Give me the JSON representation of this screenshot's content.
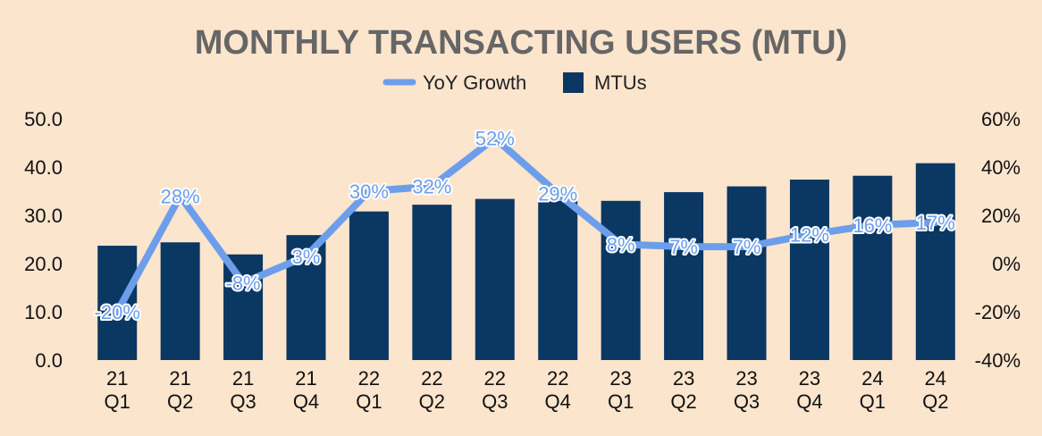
{
  "chart_data": {
    "type": "bar",
    "title": "MONTHLY TRANSACTING USERS (MTU)",
    "categories": [
      [
        "21",
        "Q1"
      ],
      [
        "21",
        "Q2"
      ],
      [
        "21",
        "Q3"
      ],
      [
        "21",
        "Q4"
      ],
      [
        "22",
        "Q1"
      ],
      [
        "22",
        "Q2"
      ],
      [
        "22",
        "Q3"
      ],
      [
        "22",
        "Q4"
      ],
      [
        "23",
        "Q1"
      ],
      [
        "23",
        "Q2"
      ],
      [
        "23",
        "Q3"
      ],
      [
        "23",
        "Q4"
      ],
      [
        "24",
        "Q1"
      ],
      [
        "24",
        "Q2"
      ]
    ],
    "series": [
      {
        "name": "MTUs",
        "type": "bar",
        "axis": "left",
        "color": "#0b3763",
        "values": [
          23.7,
          24.4,
          21.9,
          25.9,
          30.8,
          32.2,
          33.4,
          33.0,
          33.0,
          34.8,
          36.0,
          37.4,
          38.2,
          40.8
        ]
      },
      {
        "name": "YoY Growth",
        "type": "line",
        "axis": "right",
        "color": "#6d9eeb",
        "label_color": "#6d9eeb",
        "values": [
          -20,
          28,
          -8,
          3,
          30,
          32,
          52,
          29,
          8,
          7,
          7,
          12,
          16,
          17
        ],
        "labels": [
          "-20%",
          "28%",
          "-8%",
          "3%",
          "30%",
          "32%",
          "52%",
          "29%",
          "8%",
          "7%",
          "7%",
          "12%",
          "16%",
          "17%"
        ]
      }
    ],
    "y_left": {
      "min": 0,
      "max": 50,
      "ticks": [
        0,
        10,
        20,
        30,
        40,
        50
      ],
      "tick_labels": [
        "0.0",
        "10.0",
        "20.0",
        "30.0",
        "40.0",
        "50.0"
      ]
    },
    "y_right": {
      "min": -40,
      "max": 60,
      "ticks": [
        -40,
        -20,
        0,
        20,
        40,
        60
      ],
      "tick_labels": [
        "-40%",
        "-20%",
        "0%",
        "20%",
        "40%",
        "60%"
      ]
    },
    "legend": {
      "position": "top-center",
      "items": [
        "YoY Growth",
        "MTUs"
      ]
    },
    "grid": false
  }
}
